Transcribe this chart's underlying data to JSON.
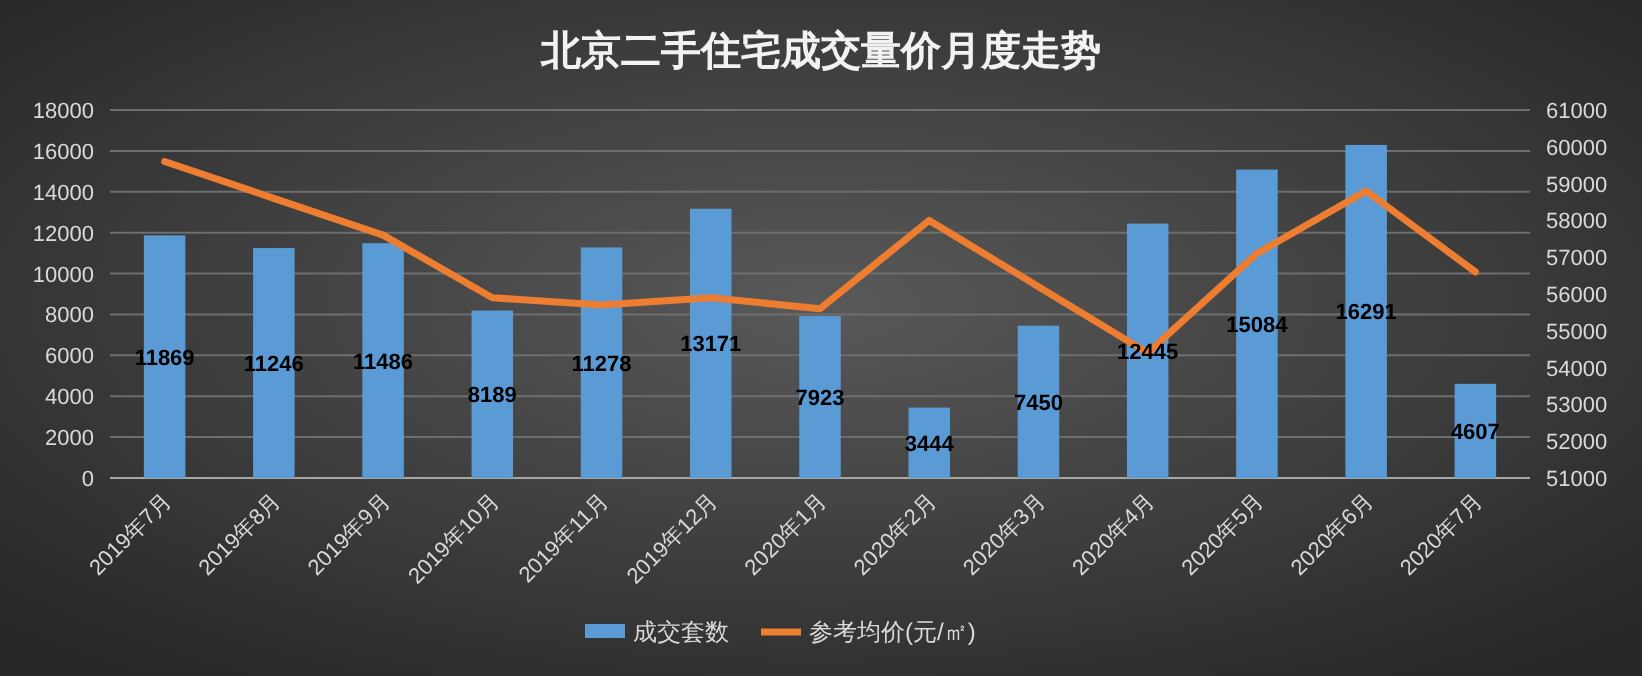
{
  "chart_data": {
    "type": "bar",
    "title": "北京二手住宅成交量价月度走势",
    "categories": [
      "2019年7月",
      "2019年8月",
      "2019年9月",
      "2019年10月",
      "2019年11月",
      "2019年12月",
      "2020年1月",
      "2020年2月",
      "2020年3月",
      "2020年4月",
      "2020年5月",
      "2020年6月",
      "2020年7月"
    ],
    "series": [
      {
        "name": "成交套数",
        "color": "#5b9bd5",
        "values": [
          11869,
          11246,
          11486,
          8189,
          11278,
          13171,
          7923,
          3444,
          7450,
          12445,
          15084,
          16291,
          4607
        ],
        "data_labels": true
      },
      {
        "name": "参考均价(元/㎡)",
        "type": "line",
        "axis": "y2",
        "color": "#ed7d31",
        "values": [
          59600,
          58600,
          57600,
          55900,
          55700,
          55900,
          55600,
          58000,
          56200,
          54400,
          57100,
          58800,
          56600
        ]
      }
    ],
    "ylim": [
      0,
      18000
    ],
    "yticks": [
      0,
      2000,
      4000,
      6000,
      8000,
      10000,
      12000,
      14000,
      16000,
      18000
    ],
    "y2lim": [
      51000,
      61000
    ],
    "y2ticks": [
      51000,
      52000,
      53000,
      54000,
      55000,
      56000,
      57000,
      58000,
      59000,
      60000,
      61000
    ],
    "grid": "y",
    "legend": "bottom",
    "marker": "none",
    "line_style": "solid"
  }
}
